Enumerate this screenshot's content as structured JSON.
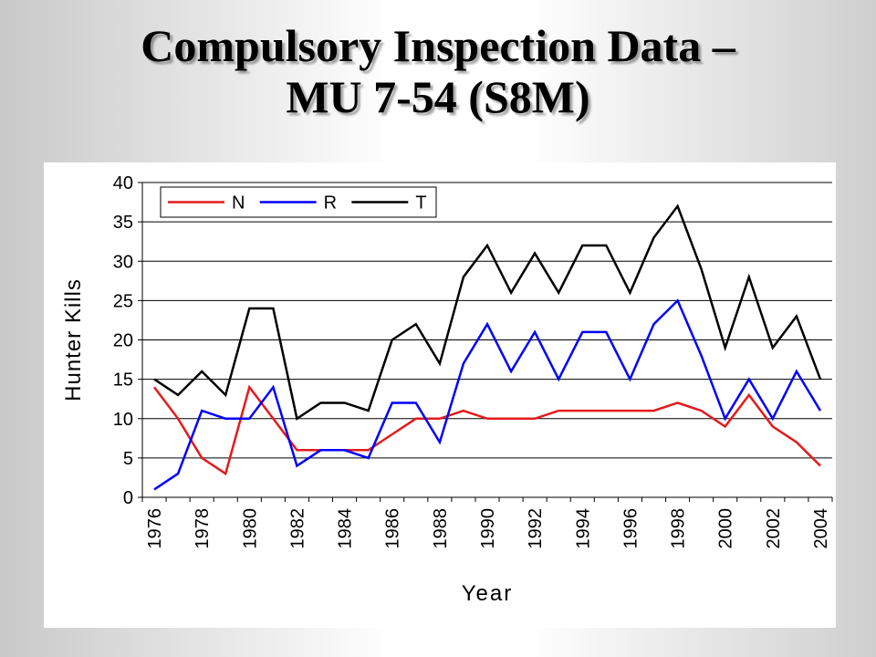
{
  "slide": {
    "title_line1": "Compulsory Inspection Data –",
    "title_line2": "MU 7-54 (S8M)"
  },
  "chart_data": {
    "type": "line",
    "title": "",
    "xlabel": "Year",
    "ylabel": "Hunter Kills",
    "ylim": [
      0,
      40
    ],
    "yticks": [
      0,
      5,
      10,
      15,
      20,
      25,
      30,
      35,
      40
    ],
    "x": [
      1976,
      1977,
      1978,
      1979,
      1980,
      1981,
      1982,
      1983,
      1984,
      1985,
      1986,
      1987,
      1988,
      1989,
      1990,
      1991,
      1992,
      1993,
      1994,
      1995,
      1996,
      1997,
      1998,
      1999,
      2000,
      2001,
      2002,
      2003,
      2004
    ],
    "xtick_labels": [
      "1976",
      "1978",
      "1980",
      "1982",
      "1984",
      "1986",
      "1988",
      "1990",
      "1992",
      "1994",
      "1996",
      "1998",
      "2000",
      "2002",
      "2004"
    ],
    "grid": "horizontal",
    "legend_position": "top-left",
    "series": [
      {
        "name": "N",
        "color": "#e41a1c",
        "values": [
          14,
          10,
          5,
          3,
          14,
          10,
          6,
          6,
          6,
          6,
          8,
          10,
          10,
          11,
          10,
          10,
          10,
          11,
          11,
          11,
          11,
          11,
          12,
          11,
          9,
          13,
          9,
          7,
          4
        ]
      },
      {
        "name": "R",
        "color": "#0000ff",
        "values": [
          1,
          3,
          11,
          10,
          10,
          14,
          4,
          6,
          6,
          5,
          12,
          12,
          7,
          17,
          22,
          16,
          21,
          15,
          21,
          21,
          15,
          22,
          25,
          18,
          10,
          15,
          10,
          16,
          11
        ]
      },
      {
        "name": "T",
        "color": "#000000",
        "values": [
          15,
          13,
          16,
          13,
          24,
          24,
          10,
          12,
          12,
          11,
          20,
          22,
          17,
          28,
          32,
          26,
          31,
          26,
          32,
          32,
          26,
          33,
          37,
          29,
          19,
          28,
          19,
          23,
          15
        ]
      }
    ]
  }
}
